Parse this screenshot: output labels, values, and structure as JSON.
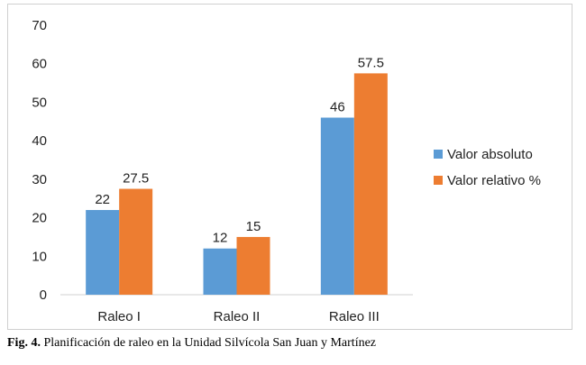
{
  "chart_data": {
    "type": "bar",
    "categories": [
      "Raleo I",
      "Raleo II",
      "Raleo III"
    ],
    "series": [
      {
        "name": "Valor absoluto",
        "values": [
          22,
          12,
          46
        ],
        "labels": [
          "22",
          "12",
          "46"
        ],
        "color": "#5b9bd5"
      },
      {
        "name": "Valor relativo %",
        "values": [
          27.5,
          15,
          57.5
        ],
        "labels": [
          "27.5",
          "15",
          "57.5"
        ],
        "color": "#ed7d31"
      }
    ],
    "ylim": [
      0,
      70
    ],
    "yticks": [
      "0",
      "10",
      "20",
      "30",
      "40",
      "50",
      "60",
      "70"
    ],
    "grid": false,
    "legend_position": "right"
  },
  "caption": {
    "label": "Fig. 4.",
    "text": " Planificación de raleo en la Unidad Silvícola San Juan y Martínez"
  }
}
